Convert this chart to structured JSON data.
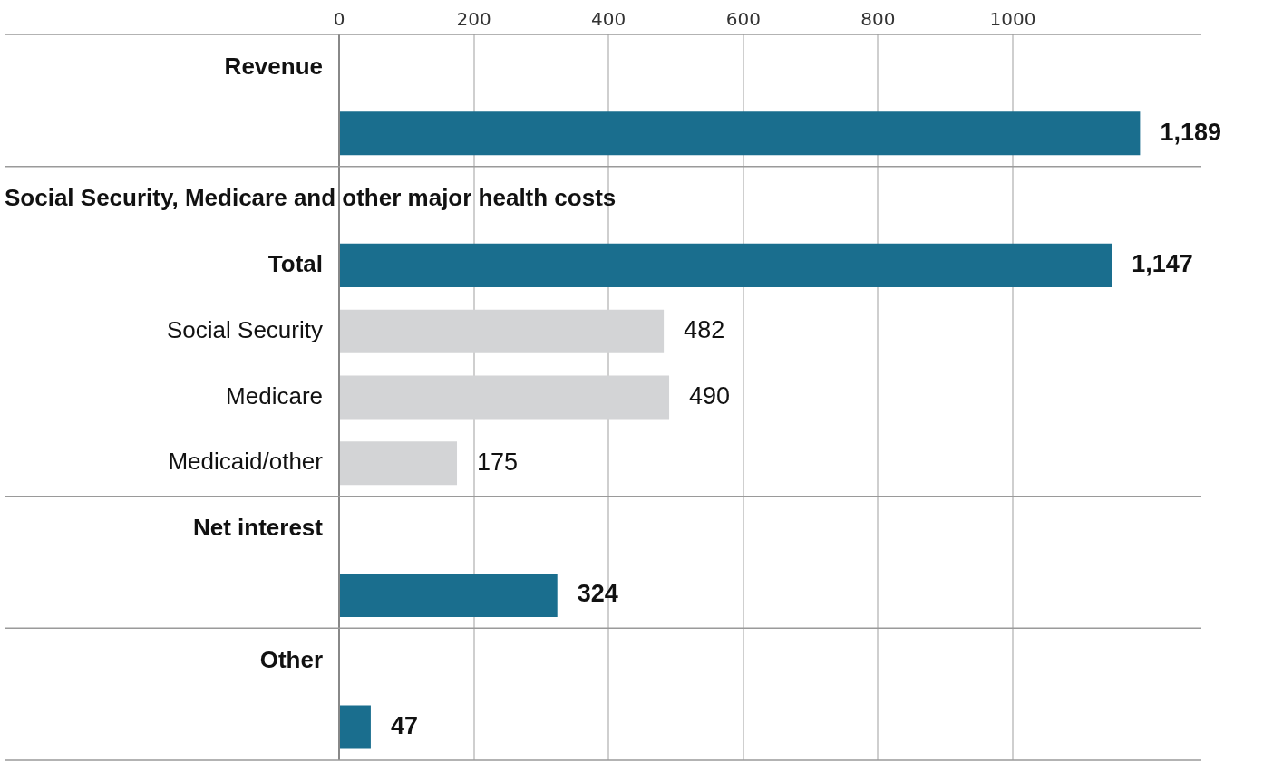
{
  "chart_data": {
    "type": "bar",
    "orientation": "horizontal",
    "categories": [
      "Revenue",
      null,
      "Social Security, Medicare and other major health costs",
      "Total",
      "Social Security",
      "Medicare",
      "Medicaid/other",
      "Net interest",
      null,
      "Other",
      null
    ],
    "values": [
      null,
      1189,
      null,
      1147,
      482,
      490,
      175,
      null,
      324,
      null,
      47
    ],
    "colors": [
      "#1a6e8e",
      "#1a6e8e",
      "#1a6e8e",
      "#1a6e8e",
      "#d3d4d6",
      "#d3d4d6",
      "#d3d4d6",
      "#1a6e8e",
      "#1a6e8e",
      "#1a6e8e",
      "#1a6e8e"
    ],
    "value_labels": [
      null,
      "1,189",
      null,
      "1,147",
      "482",
      "490",
      "175",
      null,
      "324",
      null,
      "47"
    ],
    "xlim": [
      0,
      1280
    ],
    "xticks": [
      0,
      200,
      400,
      600,
      800,
      1000
    ],
    "grid": "x"
  }
}
